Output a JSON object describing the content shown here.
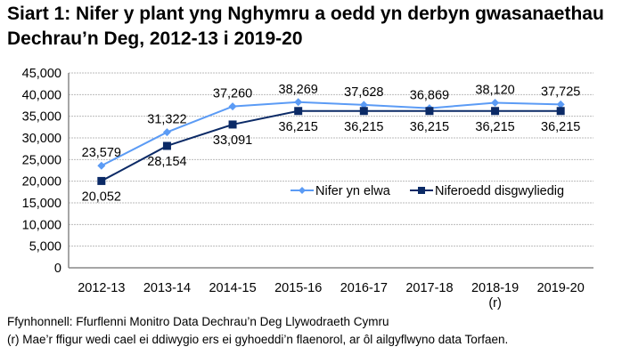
{
  "chart_data": {
    "type": "line",
    "title": "Siart 1: Nifer y plant yng Nghymru a oedd yn derbyn gwasanaethau Dechrau’n Deg, 2012-13 i 2019-20",
    "categories": [
      "2012-13",
      "2013-14",
      "2014-15",
      "2015-16",
      "2016-17",
      "2017-18",
      "2018-19",
      "2019-20"
    ],
    "category_sublabels": [
      "",
      "",
      "",
      "",
      "",
      "",
      "(r)",
      ""
    ],
    "ylim": [
      0,
      45000
    ],
    "yticks": [
      0,
      5000,
      10000,
      15000,
      20000,
      25000,
      30000,
      35000,
      40000,
      45000
    ],
    "ytick_labels": [
      "0",
      "5,000",
      "10,000",
      "15,000",
      "20,000",
      "25,000",
      "30,000",
      "35,000",
      "40,000",
      "45,000"
    ],
    "grid": true,
    "legend_placement": "center-right",
    "series": [
      {
        "name": "Nifer yn elwa",
        "color": "#5b9bf5",
        "marker": "diamond",
        "values": [
          23579,
          31322,
          37260,
          38269,
          37628,
          36869,
          38120,
          37725
        ],
        "labels": [
          "23,579",
          "31,322",
          "37,260",
          "38,269",
          "37,628",
          "36,869",
          "38,120",
          "37,725"
        ]
      },
      {
        "name": "Niferoedd disgwyliedig",
        "color": "#0b2a66",
        "marker": "square",
        "values": [
          20052,
          28154,
          33091,
          36215,
          36215,
          36215,
          36215,
          36215
        ],
        "labels": [
          "20,052",
          "28,154",
          "33,091",
          "36,215",
          "36,215",
          "36,215",
          "36,215",
          "36,215"
        ]
      }
    ]
  },
  "notes": {
    "source": "Ffynhonnell: Ffurflenni Monitro Data Dechrau’n Deg Llywodraeth Cymru",
    "revision": "(r) Mae’r ffigur wedi cael ei ddiwygio ers ei gyhoeddi’n flaenorol, ar ôl ailgyflwyno data Torfaen."
  }
}
